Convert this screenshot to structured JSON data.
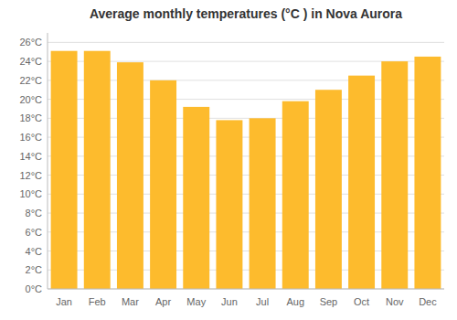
{
  "chart_data": {
    "type": "bar",
    "title": "Average monthly temperatures (°C ) in Nova Aurora",
    "categories": [
      "Jan",
      "Feb",
      "Mar",
      "Apr",
      "May",
      "Jun",
      "Jul",
      "Aug",
      "Sep",
      "Oct",
      "Nov",
      "Dec"
    ],
    "values": [
      25.1,
      25.1,
      23.9,
      22.0,
      19.2,
      17.8,
      18.0,
      19.8,
      21.0,
      22.5,
      24.0,
      24.5
    ],
    "color": "#FDBB2D",
    "ylim": [
      0,
      27
    ],
    "yticks": [
      {
        "value": 0,
        "label": "0°C"
      },
      {
        "value": 2,
        "label": "2°C"
      },
      {
        "value": 4,
        "label": "4°C"
      },
      {
        "value": 6,
        "label": "6°C"
      },
      {
        "value": 8,
        "label": "8°C"
      },
      {
        "value": 10,
        "label": "10°C"
      },
      {
        "value": 12,
        "label": "12°C"
      },
      {
        "value": 14,
        "label": "14°C"
      },
      {
        "value": 16,
        "label": "16°C"
      },
      {
        "value": 18,
        "label": "18°C"
      },
      {
        "value": 20,
        "label": "20°C"
      },
      {
        "value": 22,
        "label": "22°C"
      },
      {
        "value": 24,
        "label": "24°C"
      },
      {
        "value": 26,
        "label": "26°C"
      }
    ],
    "grid": true
  }
}
